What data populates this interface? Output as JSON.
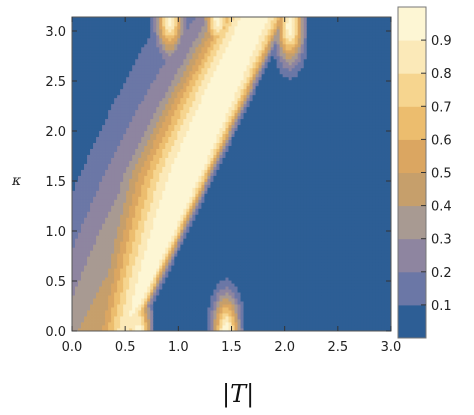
{
  "chart_data": {
    "type": "heatmap",
    "subtype": "contour",
    "title": "",
    "xlabel": "|T|",
    "ylabel": "κ",
    "xlim": [
      0,
      3
    ],
    "ylim": [
      0,
      3.14
    ],
    "x_ticks": [
      "0.0",
      "0.5",
      "1.0",
      "1.5",
      "2.0",
      "2.5",
      "3.0"
    ],
    "y_ticks": [
      "0.0",
      "0.5",
      "1.0",
      "1.5",
      "2.0",
      "2.5",
      "3.0"
    ],
    "colorbar": {
      "levels": [
        0,
        0.1,
        0.2,
        0.3,
        0.4,
        0.5,
        0.6,
        0.7,
        0.8,
        0.9,
        1.0
      ],
      "tick_labels": [
        "0.1",
        "0.2",
        "0.3",
        "0.4",
        "0.5",
        "0.6",
        "0.7",
        "0.8",
        "0.9"
      ],
      "colors": [
        "#2d5e95",
        "#4a6aa3",
        "#6b77a6",
        "#8e85a0",
        "#a89a92",
        "#c69f6b",
        "#dba661",
        "#ecbd6e",
        "#f6d58f",
        "#fbe9b8",
        "#fdf6d4"
      ]
    },
    "peaks": [
      {
        "x": 0.62,
        "y": 0.0
      },
      {
        "x": 1.45,
        "y": 0.0
      },
      {
        "x": 0.92,
        "y": 3.14
      },
      {
        "x": 1.37,
        "y": 3.14
      },
      {
        "x": 1.67,
        "y": 3.14
      },
      {
        "x": 2.05,
        "y": 3.05
      }
    ],
    "grid": false,
    "legend": "right"
  }
}
